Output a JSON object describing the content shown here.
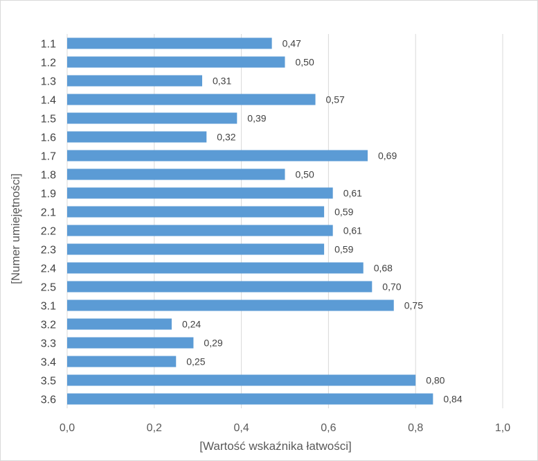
{
  "chart_data": {
    "type": "bar",
    "orientation": "horizontal",
    "title": "",
    "xlabel": "[Wartość wskaźnika łatwości]",
    "ylabel": "[Numer umiejętności]",
    "xlim": [
      0,
      1.0
    ],
    "xticks": [
      "0,0",
      "0,2",
      "0,4",
      "0,6",
      "0,8",
      "1,0"
    ],
    "grid": "vertical",
    "bar_color": "#5b9bd5",
    "categories": [
      "1.1",
      "1.2",
      "1.3",
      "1.4",
      "1.5",
      "1.6",
      "1.7",
      "1.8",
      "1.9",
      "2.1",
      "2.2",
      "2.3",
      "2.4",
      "2.5",
      "3.1",
      "3.2",
      "3.3",
      "3.4",
      "3.5",
      "3.6"
    ],
    "values": [
      0.47,
      0.5,
      0.31,
      0.57,
      0.39,
      0.32,
      0.69,
      0.5,
      0.61,
      0.59,
      0.61,
      0.59,
      0.68,
      0.7,
      0.75,
      0.24,
      0.29,
      0.25,
      0.8,
      0.84
    ],
    "value_labels": [
      "0,47",
      "0,50",
      "0,31",
      "0,57",
      "0,39",
      "0,32",
      "0,69",
      "0,50",
      "0,61",
      "0,59",
      "0,61",
      "0,59",
      "0,68",
      "0,70",
      "0,75",
      "0,24",
      "0,29",
      "0,25",
      "0,80",
      "0,84"
    ]
  }
}
